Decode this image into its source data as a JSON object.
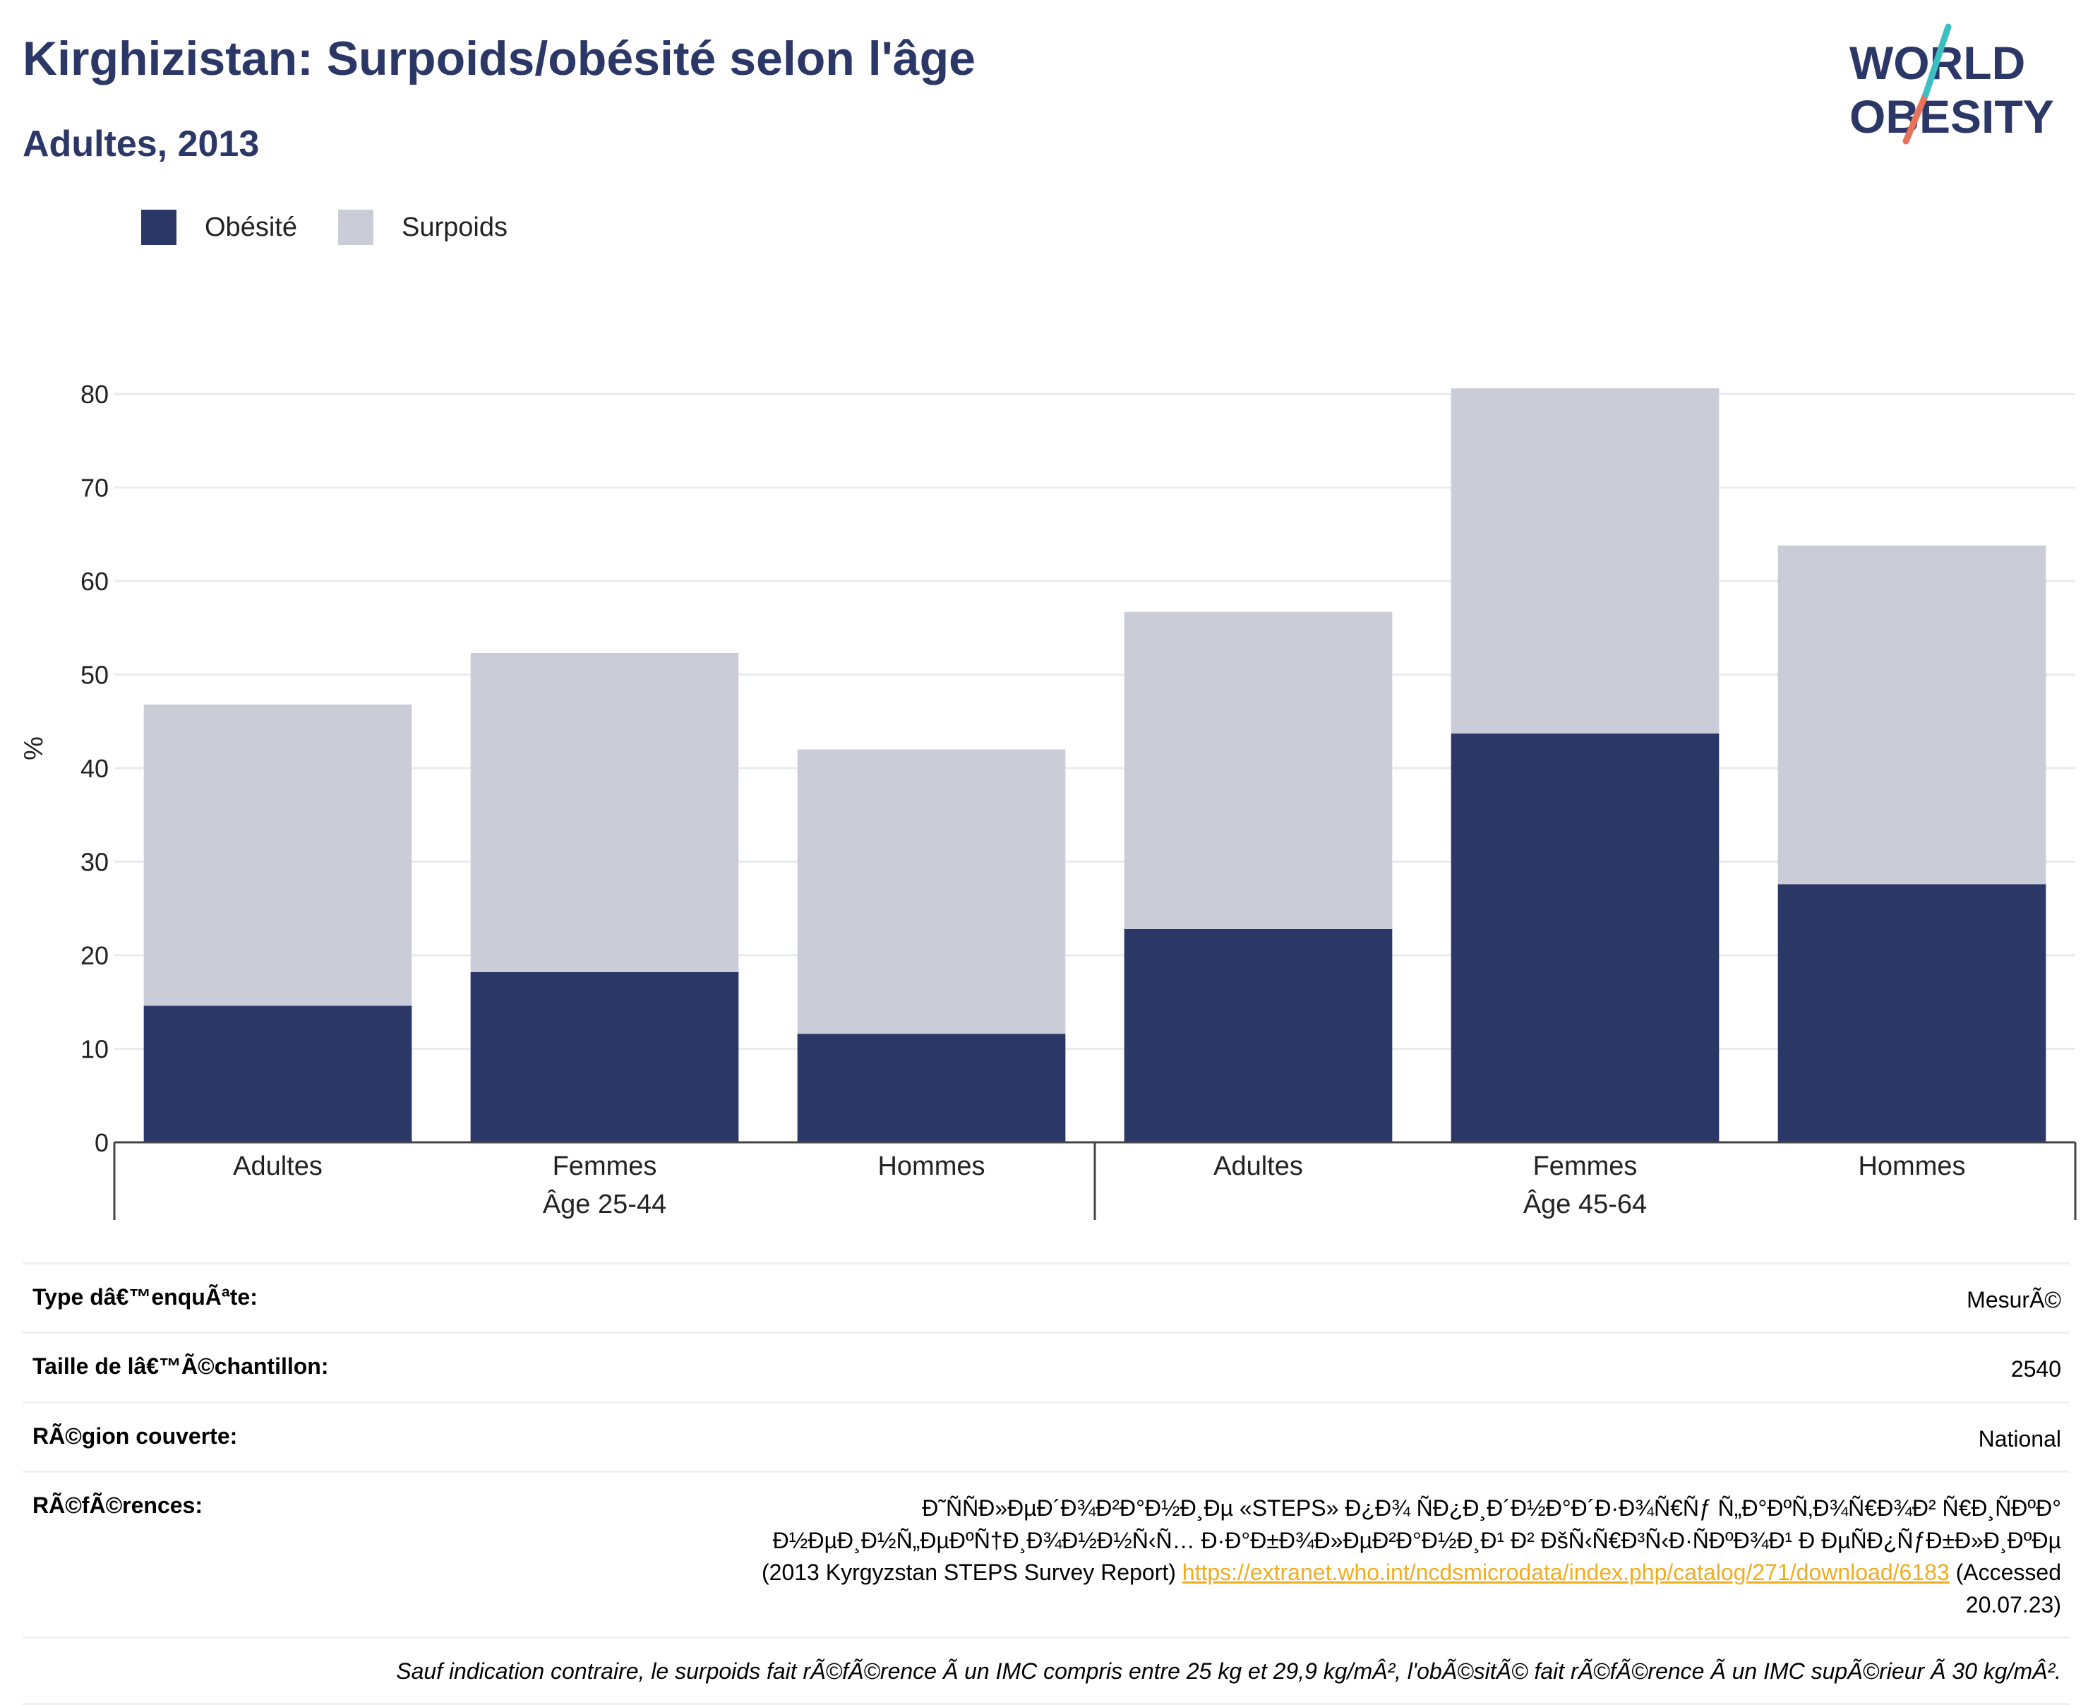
{
  "header": {
    "title": "Kirghizistan: Surpoids/obésité selon l'âge",
    "subtitle": "Adultes, 2013"
  },
  "logo": {
    "line1": "WORLD",
    "line2": "OBESITY"
  },
  "colors": {
    "obesity": "#2b3766",
    "overweight": "#cacdd8",
    "title": "#2b3766",
    "link": "#f0ad1e"
  },
  "chart_data": {
    "type": "bar",
    "stacked": true,
    "title": "",
    "xlabel": "",
    "ylabel": "%",
    "ylim": [
      0,
      85
    ],
    "yticks": [
      0,
      10,
      20,
      30,
      40,
      50,
      60,
      70,
      80
    ],
    "grid": true,
    "legend_position": "top-left",
    "groups": [
      "Âge 25-44",
      "Âge 45-64"
    ],
    "categories": [
      "Adultes",
      "Femmes",
      "Hommes",
      "Adultes",
      "Femmes",
      "Hommes"
    ],
    "category_groups": [
      0,
      0,
      0,
      1,
      1,
      1
    ],
    "series": [
      {
        "name": "Obésité",
        "color": "#2b3766",
        "values": [
          14.6,
          18.2,
          11.6,
          22.8,
          43.7,
          27.6
        ]
      },
      {
        "name": "Surpoids",
        "color": "#cacdd8",
        "values": [
          32.2,
          34.1,
          30.4,
          33.9,
          36.9,
          36.2
        ]
      }
    ]
  },
  "meta": {
    "survey_type_label": "Type dâ€™enquÃªte:",
    "survey_type_value": "MesurÃ©",
    "sample_size_label": "Taille de lâ€™Ã©chantillon:",
    "sample_size_value": "2540",
    "region_label": "RÃ©gion couverte:",
    "region_value": "National",
    "references_label": "RÃ©fÃ©rences:",
    "references_line1": "Ð˜ÑÑÐ»ÐµÐ´Ð¾Ð²Ð°Ð½Ð¸Ðµ «STEPS» Ð¿Ð¾ ÑÐ¿Ð¸Ð´Ð½Ð°Ð´Ð·Ð¾Ñ€Ñƒ Ñ„Ð°ÐºÑ‚Ð¾Ñ€Ð¾Ð² Ñ€Ð¸ÑÐºÐ°",
    "references_line2": "Ð½ÐµÐ¸Ð½Ñ„ÐµÐºÑ†Ð¸Ð¾Ð½Ð½Ñ‹Ñ… Ð·Ð°Ð±Ð¾Ð»ÐµÐ²Ð°Ð½Ð¸Ð¹ Ð² ÐšÑ‹Ñ€Ð³Ñ‹Ð·ÑÐºÐ¾Ð¹ Ð ÐµÑÐ¿ÑƒÐ±Ð»Ð¸ÐºÐµ",
    "references_before": "(2013 Kyrgyzstan STEPS Survey Report) ",
    "references_link": "https://extranet.who.int/ncdsmicrodata/index.php/catalog/271/download/6183",
    "references_after": " (Accessed",
    "references_date": "20.07.23)",
    "footnote": "Sauf indication contraire, le surpoids fait rÃ©fÃ©rence Ã  un IMC compris entre 25 kg et 29,9 kg/mÂ², l'obÃ©sitÃ© fait rÃ©fÃ©rence Ã  un IMC supÃ©rieur Ã  30 kg/mÂ²."
  }
}
